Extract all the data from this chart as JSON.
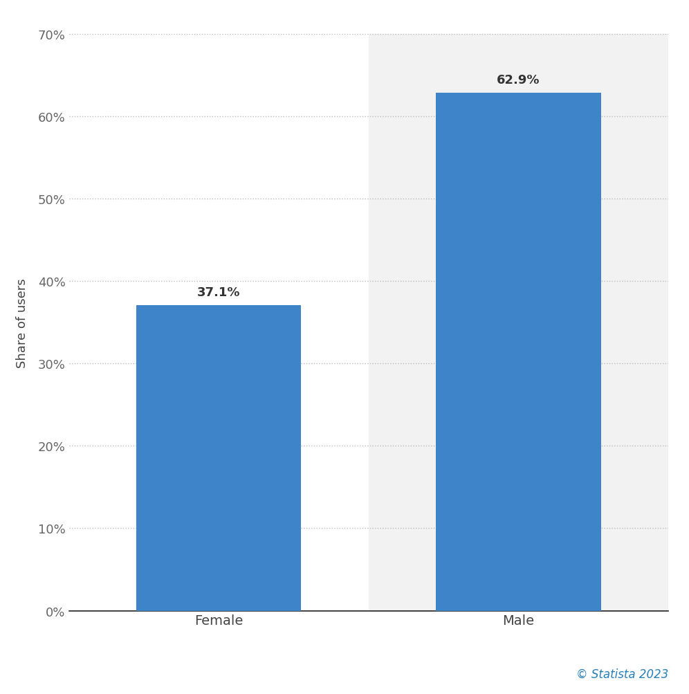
{
  "categories": [
    "Female",
    "Male"
  ],
  "values": [
    37.1,
    62.9
  ],
  "bar_color": "#3d85c8",
  "ylabel": "Share of users",
  "ylim": [
    0,
    70
  ],
  "yticks": [
    0,
    10,
    20,
    30,
    40,
    50,
    60,
    70
  ],
  "ytick_labels": [
    "0%",
    "10%",
    "20%",
    "30%",
    "40%",
    "50%",
    "60%",
    "70%"
  ],
  "label_fontsize": 14,
  "tick_fontsize": 13,
  "ylabel_fontsize": 13,
  "value_label_fontsize": 13,
  "background_color": "#ffffff",
  "plot_bg_color": "#f2f2f2",
  "bar_width": 0.55,
  "grid_color": "#bbbbbb",
  "copyright_text": "© Statista 2023",
  "copyright_color": "#2980b9",
  "tick_label_color": "#666666",
  "xlabel_color": "#444444"
}
